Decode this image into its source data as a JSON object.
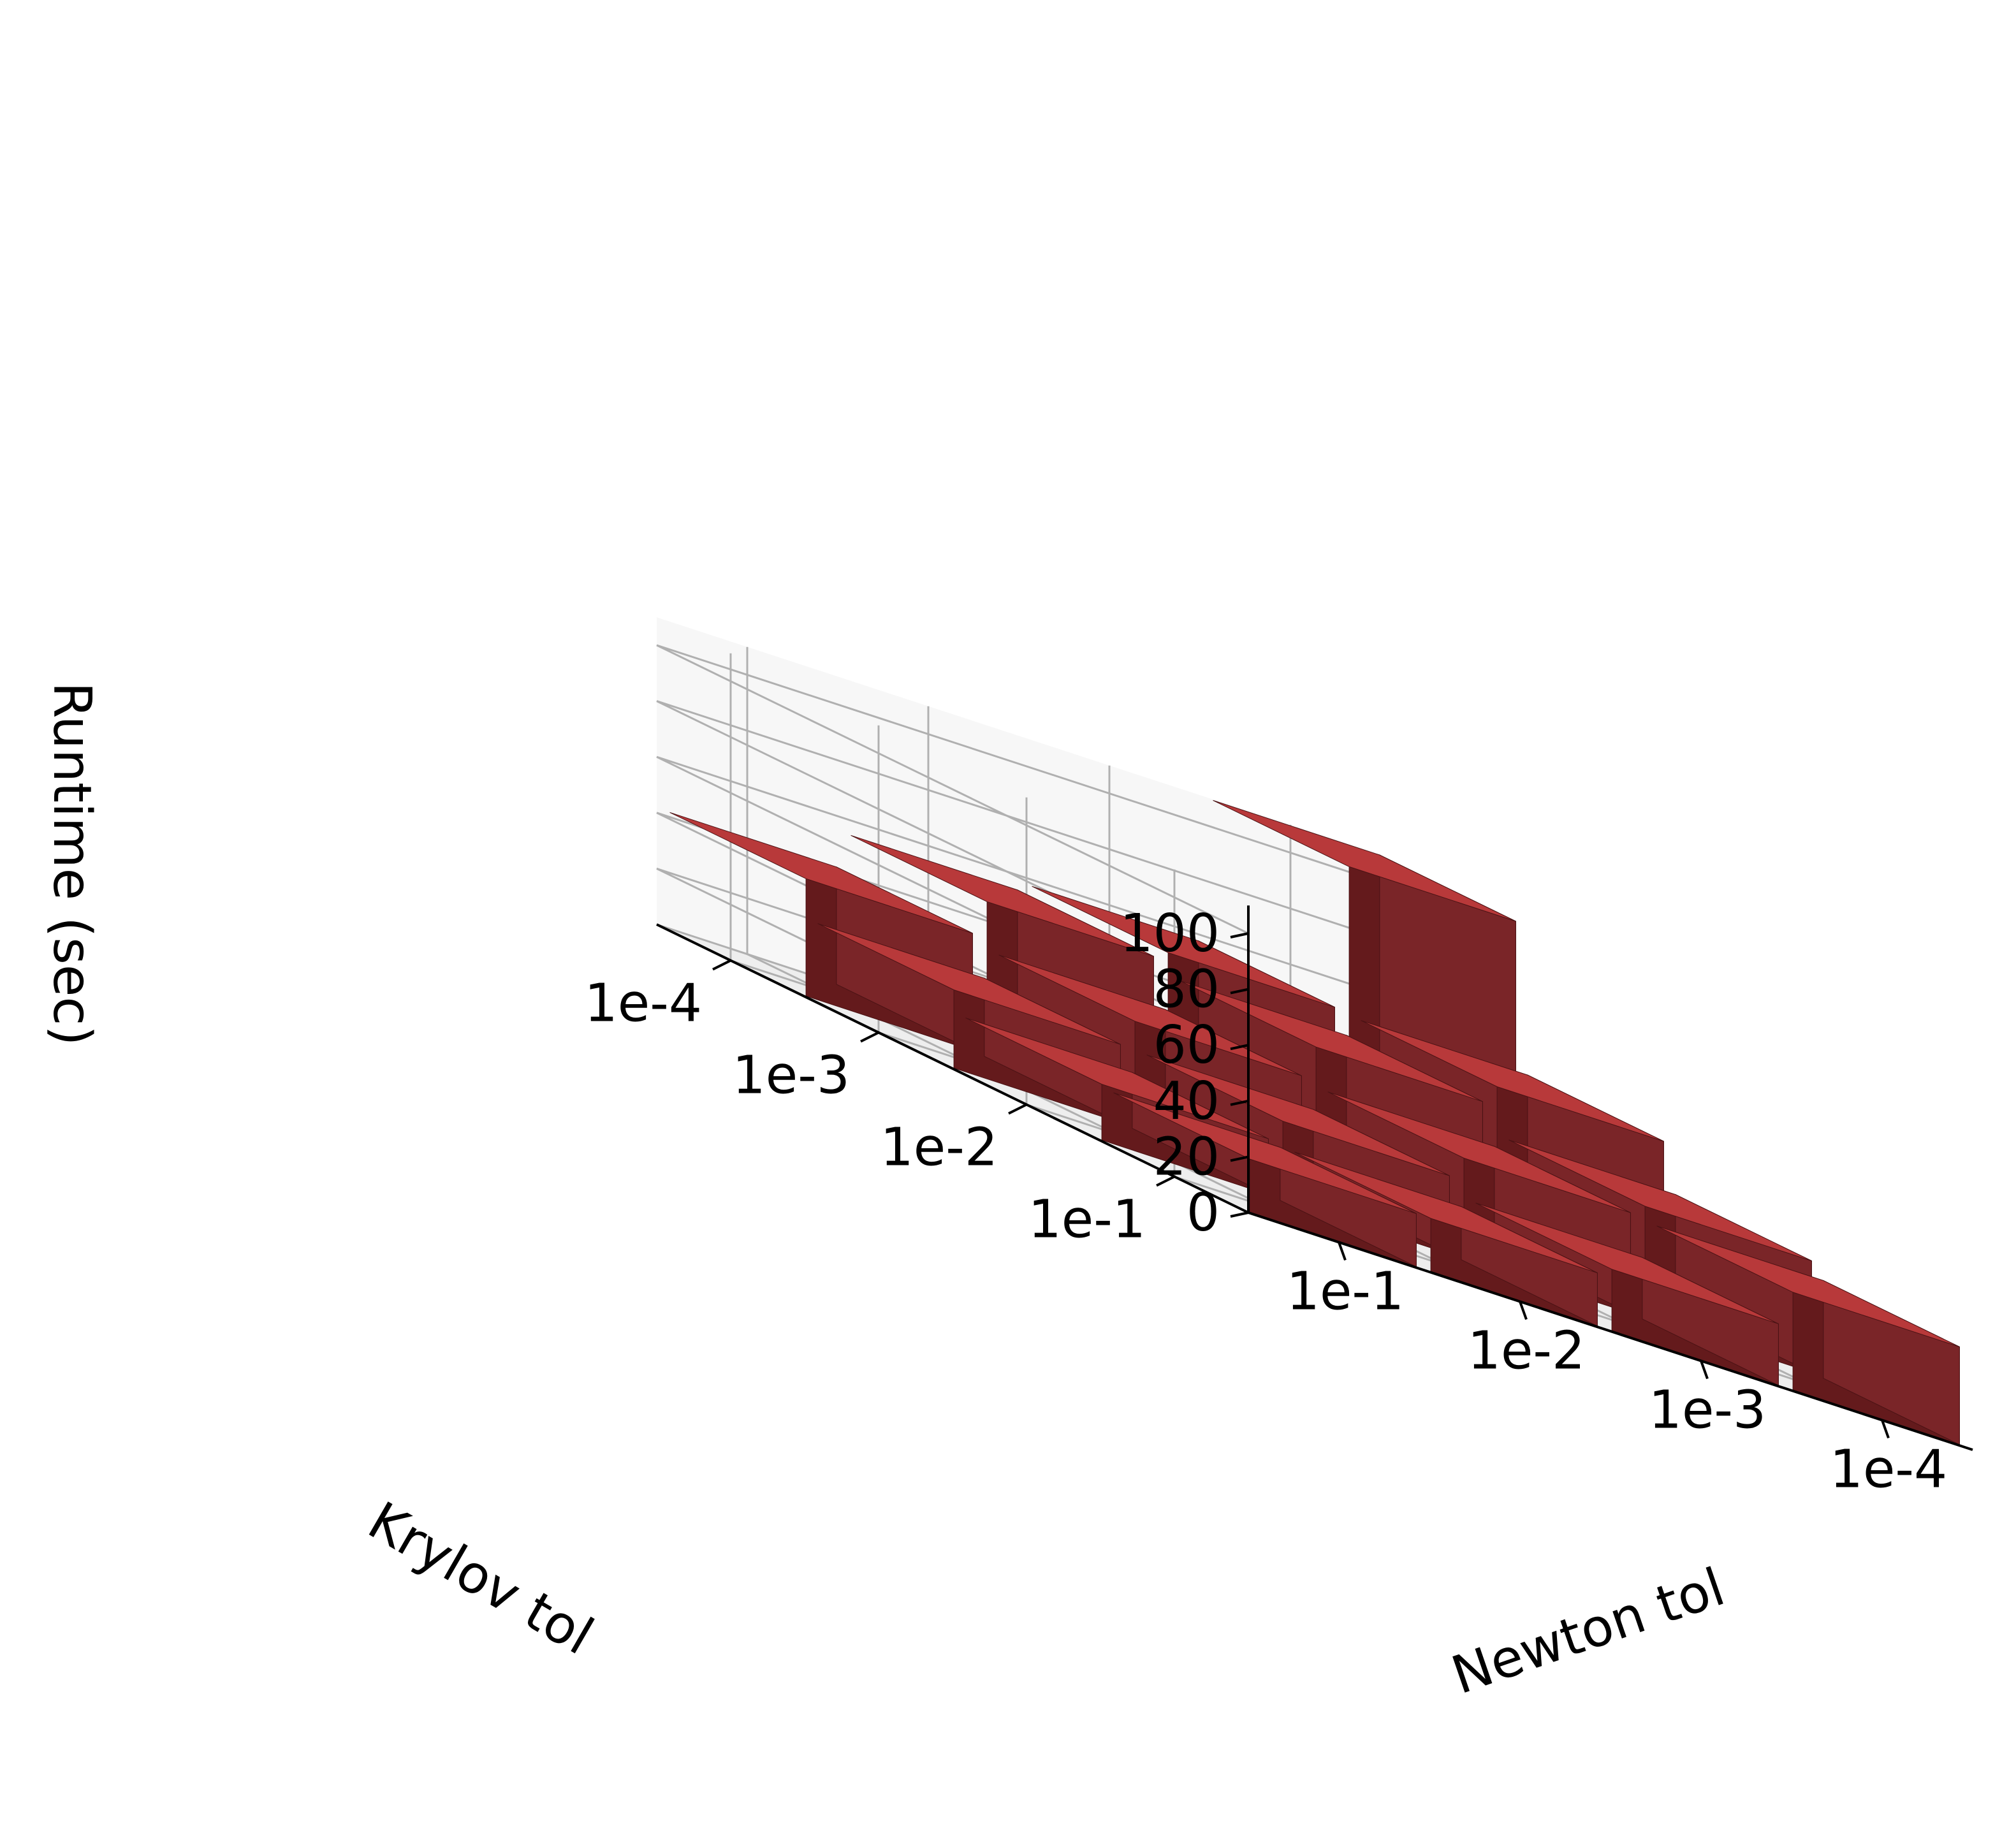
{
  "chart_data": {
    "type": "bar3d",
    "title": "",
    "zlabel": "Runtime (sec)",
    "xlabel": "Newton tol",
    "ylabel": "Krylov tol",
    "newton_ticks": [
      "1e-1",
      "1e-2",
      "1e-3",
      "1e-4"
    ],
    "krylov_ticks": [
      "1e-4",
      "1e-3",
      "1e-2",
      "1e-1"
    ],
    "z_ticks": [
      "0",
      "20",
      "40",
      "60",
      "80",
      "100"
    ],
    "zlim": [
      0,
      110
    ],
    "grid": true,
    "bar_color": "#b22222",
    "rows_by_krylov": [
      {
        "krylov": "1e-4",
        "newton_values": [
          42,
          55,
          58,
          110
        ]
      },
      {
        "krylov": "1e-3",
        "newton_values": [
          28,
          38,
          50,
          57
        ]
      },
      {
        "krylov": "1e-2",
        "newton_values": [
          20,
          28,
          36,
          40
        ]
      },
      {
        "krylov": "1e-1",
        "newton_values": [
          19,
          19,
          22,
          35
        ]
      }
    ]
  }
}
